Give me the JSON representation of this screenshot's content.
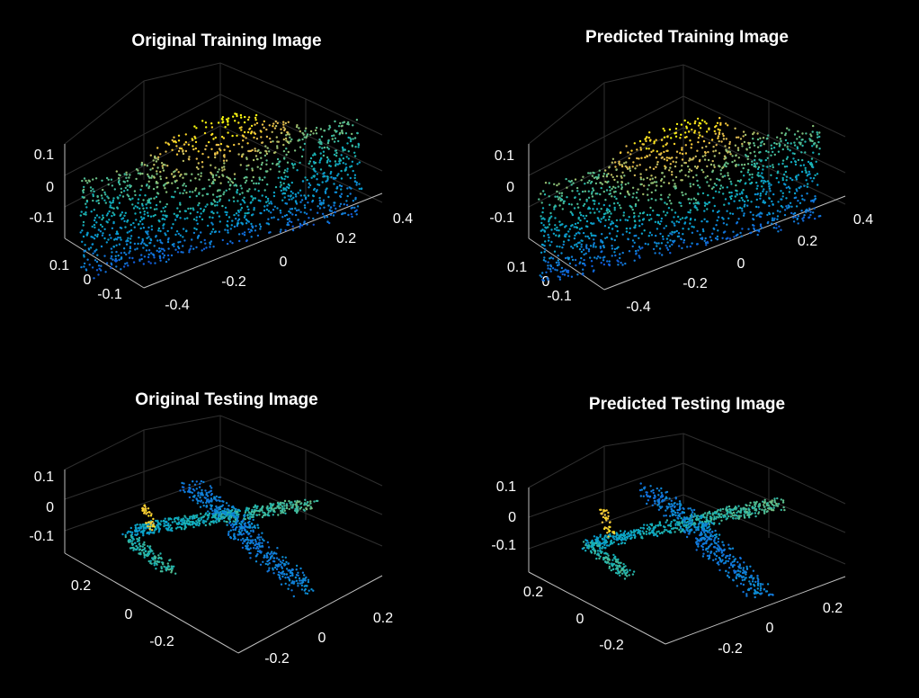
{
  "figure": {
    "background": "#000000",
    "text_color": "#ffffff",
    "colormap": "parula"
  },
  "chart_data": [
    {
      "type": "scatter",
      "subtype": "3d-point-cloud",
      "title": "Original Training Image",
      "shape": "car",
      "x_ticks": [
        "0.4",
        "0.2",
        "0",
        "-0.2",
        "-0.4"
      ],
      "y_ticks": [
        "0.1",
        "0",
        "-0.1"
      ],
      "z_ticks": [
        "0.1",
        "0",
        "-0.1"
      ],
      "grid": true
    },
    {
      "type": "scatter",
      "subtype": "3d-point-cloud",
      "title": "Predicted Training Image",
      "shape": "car",
      "x_ticks": [
        "0.4",
        "0.2",
        "0",
        "-0.2",
        "-0.4"
      ],
      "y_ticks": [
        "0.1",
        "0",
        "-0.1"
      ],
      "z_ticks": [
        "0.1",
        "0",
        "-0.1"
      ],
      "grid": true
    },
    {
      "type": "scatter",
      "subtype": "3d-point-cloud",
      "title": "Original Testing Image",
      "shape": "airplane",
      "x_ticks": [
        "0.2",
        "0",
        "-0.2"
      ],
      "y_ticks": [
        "0.2",
        "0",
        "-0.2"
      ],
      "z_ticks": [
        "0.1",
        "0",
        "-0.1"
      ],
      "grid": true
    },
    {
      "type": "scatter",
      "subtype": "3d-point-cloud",
      "title": "Predicted Testing Image",
      "shape": "airplane",
      "x_ticks": [
        "0.2",
        "0",
        "-0.2"
      ],
      "y_ticks": [
        "0.2",
        "0",
        "-0.2"
      ],
      "z_ticks": [
        "0.1",
        "0",
        "-0.1"
      ],
      "grid": true
    }
  ]
}
